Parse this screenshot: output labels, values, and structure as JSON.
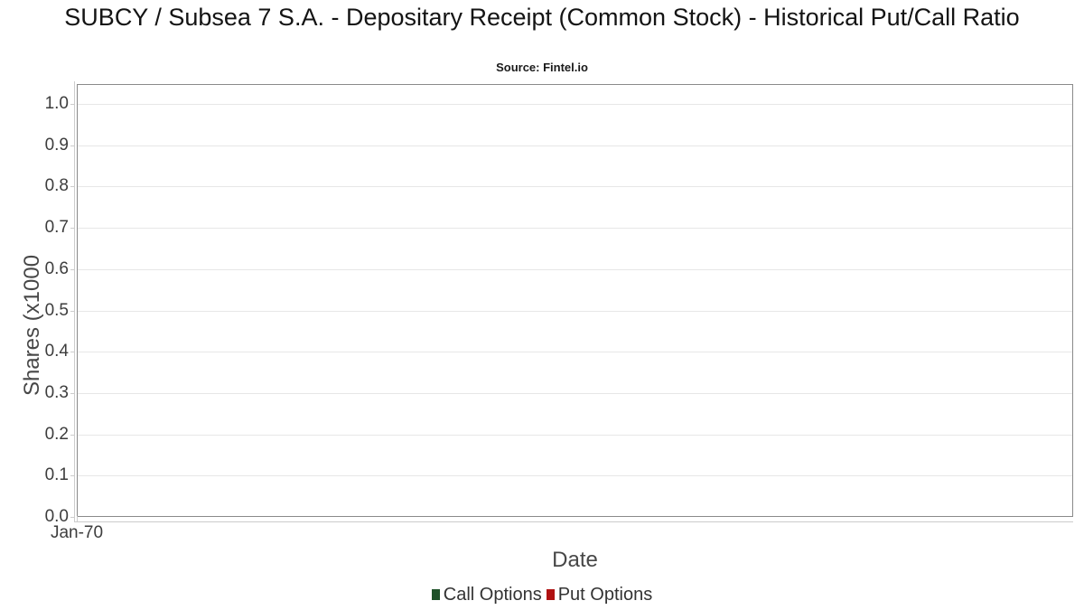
{
  "chart_data": {
    "type": "line",
    "title": "SUBCY / Subsea 7 S.A. - Depositary Receipt (Common Stock) - Historical Put/Call Ratio",
    "subtitle": "Source: Fintel.io",
    "xlabel": "Date",
    "ylabel": "Shares (x1000",
    "ylim": [
      0.0,
      1.0
    ],
    "y_ticks": [
      "1.0",
      "0.9",
      "0.8",
      "0.7",
      "0.6",
      "0.5",
      "0.4",
      "0.3",
      "0.2",
      "0.1",
      "0.0"
    ],
    "x_ticks": [
      {
        "label": "Jan-70",
        "pos": 0
      }
    ],
    "grid": {
      "horizontal": true,
      "vertical": false
    },
    "legend_position": "bottom",
    "series": [
      {
        "name": "Call Options",
        "color": "#1e5128",
        "x": [],
        "values": []
      },
      {
        "name": "Put Options",
        "color": "#b01212",
        "x": [],
        "values": []
      }
    ],
    "colors": {
      "plot_border": "#8a8a8a",
      "gridline": "#e7e7e7",
      "axis_line": "#cccccc",
      "tick_text": "#3d3d3d",
      "axis_label_text": "#474747",
      "title_text": "#141414",
      "legend_text": "#333333"
    }
  }
}
